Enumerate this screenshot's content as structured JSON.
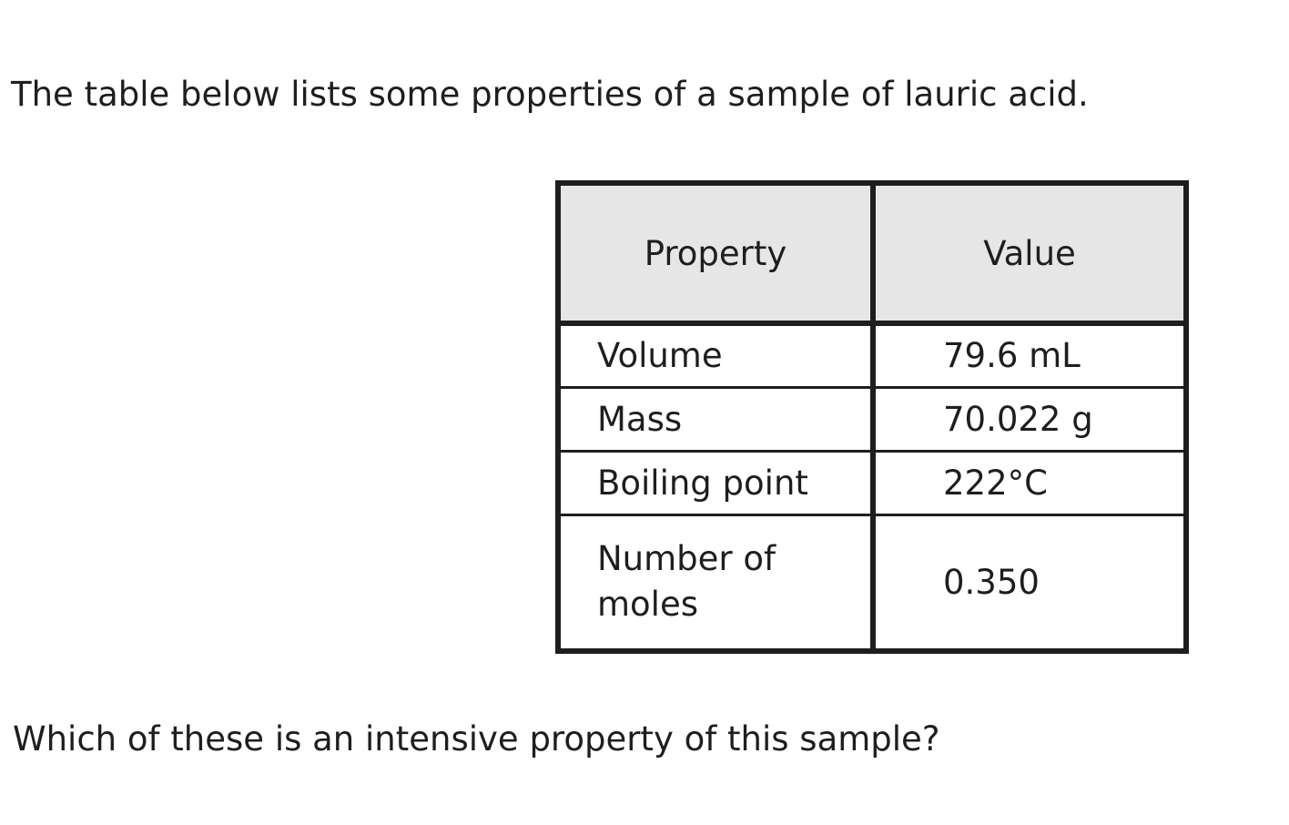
{
  "intro": "The table below lists some properties of a sample of lauric acid.",
  "table": {
    "headers": [
      "Property",
      "Value"
    ],
    "rows": [
      {
        "property": "Volume",
        "value": "79.6 mL"
      },
      {
        "property": "Mass",
        "value": "70.022 g"
      },
      {
        "property": "Boiling point",
        "value": "222°C"
      },
      {
        "property": "Number of moles",
        "value": "0.350"
      }
    ]
  },
  "question": "Which of these is an intensive property of this sample?"
}
